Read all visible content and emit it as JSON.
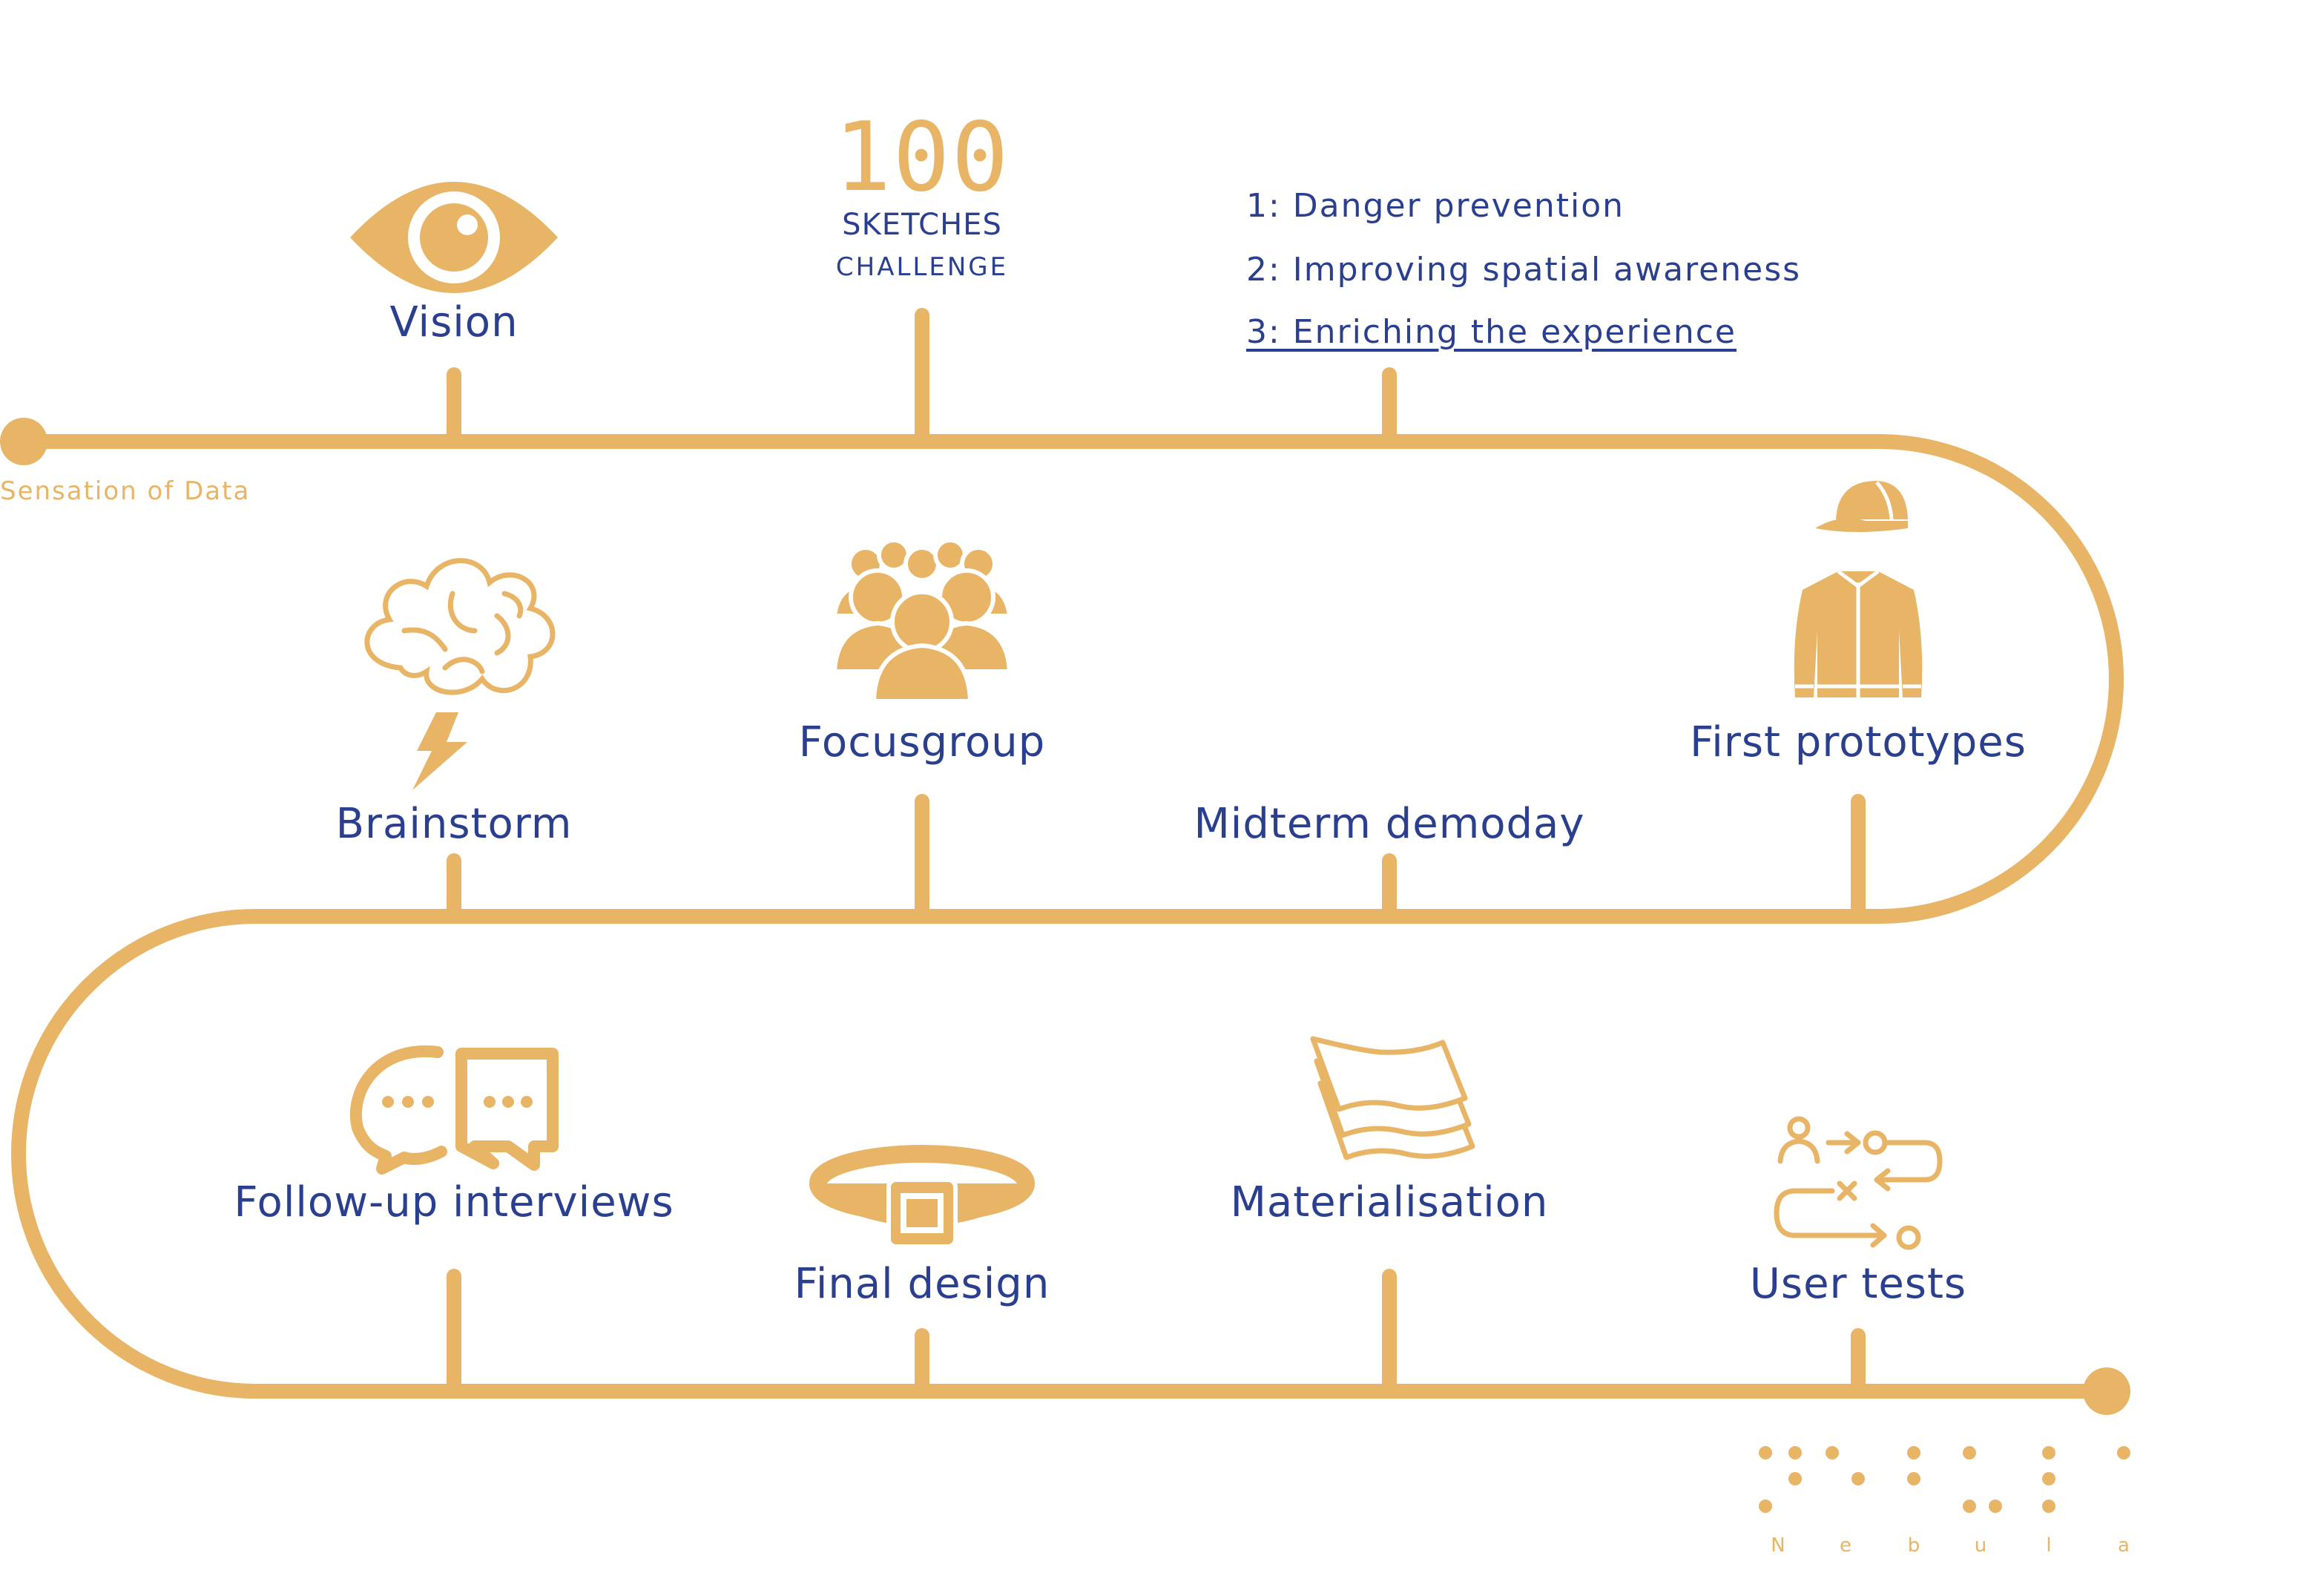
{
  "theme": {
    "accent": "#E8B466",
    "text": "#2B3F8F",
    "background": "#FFFFFF"
  },
  "start_label": "Sensation of Data",
  "sketches": {
    "number": "100",
    "line1": "SKETCHES",
    "line2": "CHALLENGE"
  },
  "vision_points": [
    "1: Danger prevention",
    "2: Improving spatial awareness",
    "3: Enriching the experience"
  ],
  "milestones": [
    {
      "label": "Vision",
      "icon": "eye-icon"
    },
    {
      "label": "Brainstorm",
      "icon": "brain-icon"
    },
    {
      "label": "Focusgroup",
      "icon": "group-icon"
    },
    {
      "label": "Midterm demoday",
      "icon": ""
    },
    {
      "label": "First prototypes",
      "icon": "jacket-cap-icon"
    },
    {
      "label": "Follow-up interviews",
      "icon": "chat-bubbles-icon"
    },
    {
      "label": "Final design",
      "icon": "belt-icon"
    },
    {
      "label": "Materialisation",
      "icon": "fabric-layers-icon"
    },
    {
      "label": "User tests",
      "icon": "user-flow-icon"
    }
  ],
  "logo": {
    "letters": [
      "N",
      "e",
      "b",
      "u",
      "l",
      "a"
    ]
  }
}
